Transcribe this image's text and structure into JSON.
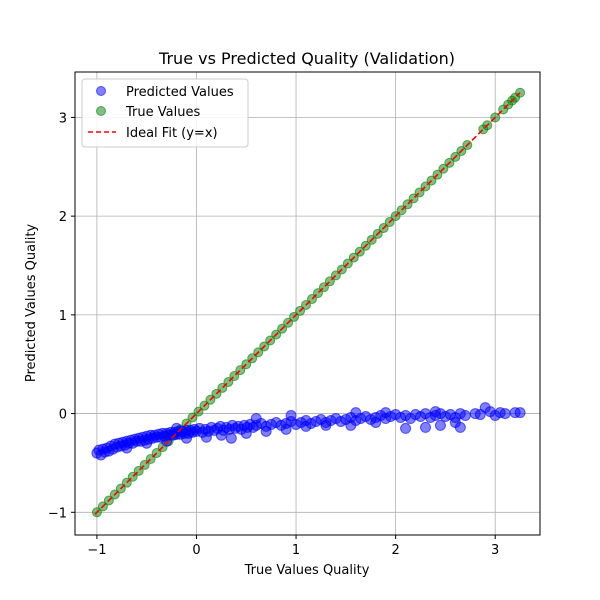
{
  "chart_data": {
    "type": "scatter",
    "title": "True vs Predicted Quality (Validation)",
    "xlabel": "True Values Quality",
    "ylabel": "Predicted Values Quality",
    "xlim": [
      -1.22,
      3.45
    ],
    "ylim": [
      -1.23,
      3.46
    ],
    "xticks": [
      -1,
      0,
      1,
      2,
      3
    ],
    "yticks": [
      -1,
      0,
      1,
      2,
      3
    ],
    "grid": true,
    "legend_position": "top-left",
    "series": [
      {
        "name": "Predicted Values",
        "marker": "circle",
        "color": "#0000ff",
        "alpha": 0.5,
        "points": [
          [
            -1.0,
            -0.4
          ],
          [
            -0.98,
            -0.37
          ],
          [
            -0.96,
            -0.42
          ],
          [
            -0.94,
            -0.36
          ],
          [
            -0.92,
            -0.39
          ],
          [
            -0.9,
            -0.35
          ],
          [
            -0.88,
            -0.38
          ],
          [
            -0.86,
            -0.33
          ],
          [
            -0.84,
            -0.36
          ],
          [
            -0.82,
            -0.31
          ],
          [
            -0.8,
            -0.34
          ],
          [
            -0.78,
            -0.3
          ],
          [
            -0.76,
            -0.33
          ],
          [
            -0.74,
            -0.29
          ],
          [
            -0.72,
            -0.32
          ],
          [
            -0.7,
            -0.28
          ],
          [
            -0.68,
            -0.3
          ],
          [
            -0.66,
            -0.27
          ],
          [
            -0.64,
            -0.3
          ],
          [
            -0.62,
            -0.26
          ],
          [
            -0.6,
            -0.28
          ],
          [
            -0.58,
            -0.25
          ],
          [
            -0.56,
            -0.28
          ],
          [
            -0.54,
            -0.24
          ],
          [
            -0.52,
            -0.27
          ],
          [
            -0.5,
            -0.23
          ],
          [
            -0.48,
            -0.26
          ],
          [
            -0.46,
            -0.22
          ],
          [
            -0.44,
            -0.25
          ],
          [
            -0.42,
            -0.22
          ],
          [
            -0.4,
            -0.24
          ],
          [
            -0.38,
            -0.21
          ],
          [
            -0.36,
            -0.24
          ],
          [
            -0.34,
            -0.2
          ],
          [
            -0.32,
            -0.23
          ],
          [
            -0.3,
            -0.2
          ],
          [
            -0.28,
            -0.22
          ],
          [
            -0.26,
            -0.19
          ],
          [
            -0.24,
            -0.22
          ],
          [
            -0.22,
            -0.19
          ],
          [
            -0.2,
            -0.21
          ],
          [
            -0.18,
            -0.18
          ],
          [
            -0.16,
            -0.21
          ],
          [
            -0.14,
            -0.18
          ],
          [
            -0.12,
            -0.2
          ],
          [
            -0.1,
            -0.17
          ],
          [
            -0.08,
            -0.2
          ],
          [
            -0.06,
            -0.17
          ],
          [
            -0.04,
            -0.19
          ],
          [
            -0.02,
            -0.16
          ],
          [
            0.0,
            -0.18
          ],
          [
            0.03,
            -0.15
          ],
          [
            0.06,
            -0.19
          ],
          [
            0.09,
            -0.16
          ],
          [
            0.12,
            -0.18
          ],
          [
            0.15,
            -0.14
          ],
          [
            0.18,
            -0.17
          ],
          [
            0.21,
            -0.15
          ],
          [
            0.24,
            -0.13
          ],
          [
            0.27,
            -0.17
          ],
          [
            0.3,
            -0.14
          ],
          [
            0.33,
            -0.16
          ],
          [
            0.36,
            -0.12
          ],
          [
            0.39,
            -0.15
          ],
          [
            0.42,
            -0.13
          ],
          [
            0.45,
            -0.16
          ],
          [
            0.48,
            -0.12
          ],
          [
            0.51,
            -0.14
          ],
          [
            0.54,
            -0.11
          ],
          [
            0.57,
            -0.14
          ],
          [
            0.6,
            -0.12
          ],
          [
            0.65,
            -0.1
          ],
          [
            0.7,
            -0.13
          ],
          [
            0.75,
            -0.11
          ],
          [
            0.8,
            -0.09
          ],
          [
            0.85,
            -0.12
          ],
          [
            0.9,
            -0.1
          ],
          [
            0.95,
            -0.08
          ],
          [
            1.0,
            -0.11
          ],
          [
            1.05,
            -0.09
          ],
          [
            1.1,
            -0.07
          ],
          [
            1.15,
            -0.1
          ],
          [
            1.2,
            -0.08
          ],
          [
            1.25,
            -0.06
          ],
          [
            1.3,
            -0.09
          ],
          [
            1.35,
            -0.07
          ],
          [
            1.4,
            -0.05
          ],
          [
            1.45,
            -0.08
          ],
          [
            1.5,
            -0.06
          ],
          [
            1.55,
            -0.04
          ],
          [
            1.6,
            -0.07
          ],
          [
            1.65,
            -0.05
          ],
          [
            1.7,
            -0.03
          ],
          [
            1.75,
            -0.06
          ],
          [
            1.8,
            -0.04
          ],
          [
            1.85,
            -0.02
          ],
          [
            1.9,
            -0.05
          ],
          [
            1.95,
            -0.03
          ],
          [
            2.0,
            -0.01
          ],
          [
            2.05,
            -0.04
          ],
          [
            2.1,
            -0.02
          ],
          [
            2.15,
            -0.05
          ],
          [
            2.2,
            -0.01
          ],
          [
            2.25,
            -0.03
          ],
          [
            2.3,
            0.0
          ],
          [
            2.35,
            -0.04
          ],
          [
            2.4,
            -0.02
          ],
          [
            2.45,
            0.0
          ],
          [
            2.5,
            -0.03
          ],
          [
            2.55,
            -0.01
          ],
          [
            2.6,
            -0.04
          ],
          [
            2.65,
            0.0
          ],
          [
            2.7,
            -0.02
          ],
          [
            2.8,
            0.0
          ],
          [
            2.85,
            -0.01
          ],
          [
            2.9,
            0.06
          ],
          [
            2.95,
            0.02
          ],
          [
            3.0,
            -0.02
          ],
          [
            3.05,
            0.01
          ],
          [
            3.1,
            0.0
          ],
          [
            3.2,
            0.01
          ],
          [
            3.25,
            0.01
          ],
          [
            0.1,
            -0.24
          ],
          [
            0.25,
            -0.22
          ],
          [
            0.35,
            -0.25
          ],
          [
            0.5,
            -0.2
          ],
          [
            0.7,
            -0.18
          ],
          [
            0.9,
            -0.16
          ],
          [
            1.1,
            -0.13
          ],
          [
            1.3,
            -0.12
          ],
          [
            1.55,
            -0.12
          ],
          [
            1.8,
            -0.09
          ],
          [
            2.1,
            -0.15
          ],
          [
            2.3,
            -0.14
          ],
          [
            2.45,
            -0.12
          ],
          [
            2.6,
            -0.09
          ],
          [
            2.65,
            -0.14
          ],
          [
            1.9,
            0.01
          ],
          [
            2.4,
            0.02
          ],
          [
            1.6,
            0.01
          ],
          [
            0.95,
            -0.02
          ],
          [
            0.6,
            -0.05
          ],
          [
            -0.7,
            -0.35
          ],
          [
            -0.5,
            -0.3
          ],
          [
            -0.3,
            -0.28
          ],
          [
            -0.2,
            -0.15
          ],
          [
            -0.1,
            -0.25
          ]
        ]
      },
      {
        "name": "True Values",
        "marker": "circle",
        "color": "#008000",
        "alpha": 0.5,
        "line_x_from": -1.0,
        "line_x_to": 2.72,
        "line_step": 0.06,
        "extra_x": [
          2.88,
          2.92,
          3.0,
          3.08,
          3.13,
          3.17,
          3.2,
          3.25
        ]
      },
      {
        "name": "Ideal Fit (y=x)",
        "style": "dashed",
        "color": "#ff0000",
        "from": -1.02,
        "to": 3.25
      }
    ]
  }
}
